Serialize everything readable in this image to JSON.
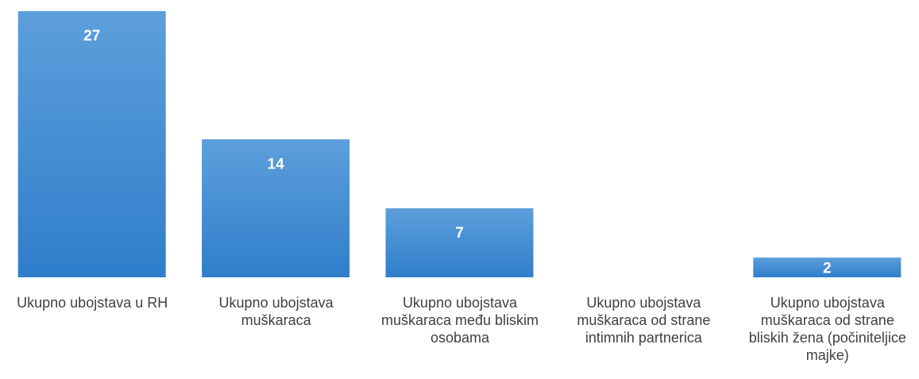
{
  "chart_data": {
    "type": "bar",
    "categories": [
      "Ukupno ubojstava u RH",
      "Ukupno ubojstava muškaraca",
      "Ukupno ubojstava muškaraca među bliskim osobama",
      "Ukupno ubojstava muškaraca od strane intimnih partnerica",
      "Ukupno ubojstava muškaraca od strane bliskih žena (počiniteljice majke)"
    ],
    "values": [
      27,
      14,
      7,
      null,
      2
    ],
    "color": "#3f8bd3",
    "ylim": [
      0,
      27
    ]
  }
}
